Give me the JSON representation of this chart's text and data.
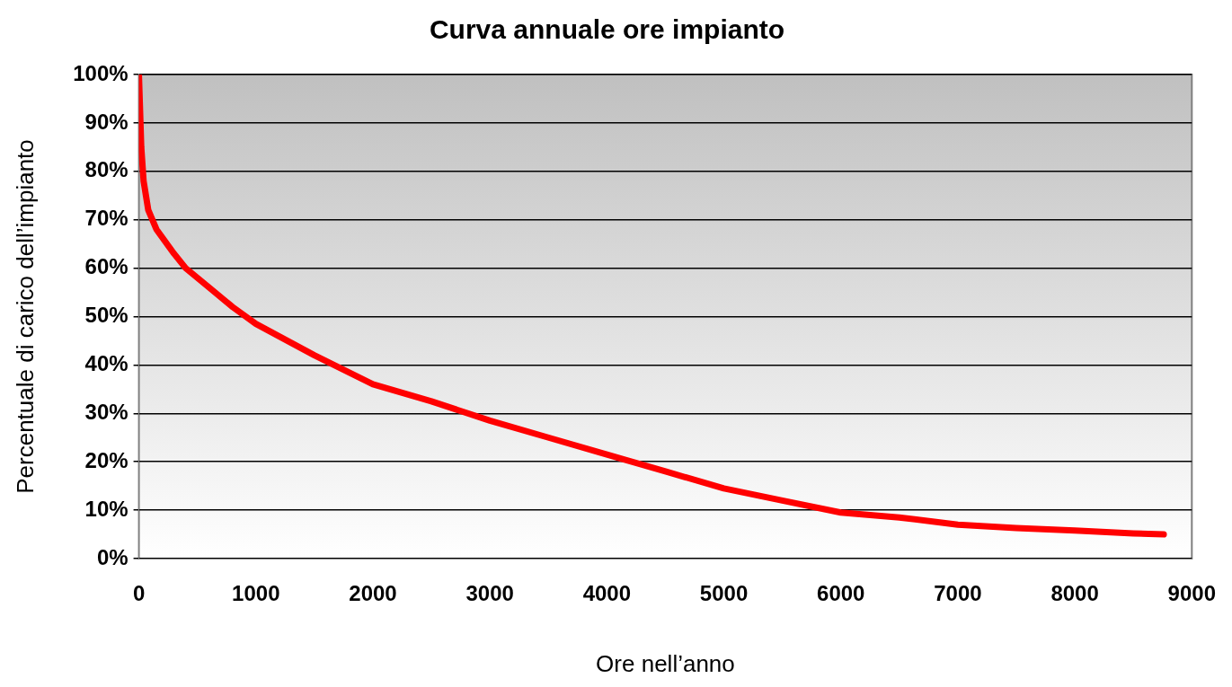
{
  "chart_data": {
    "type": "line",
    "title": "Curva annuale ore impianto",
    "xlabel": "Ore nell’anno",
    "ylabel": "Percentuale di carico dell’impianto",
    "series": [
      {
        "color": "#ff0000",
        "x": [
          0,
          20,
          40,
          80,
          150,
          300,
          400,
          600,
          800,
          1000,
          1500,
          2000,
          2500,
          3000,
          3500,
          4000,
          4500,
          5000,
          5500,
          6000,
          6500,
          7000,
          7500,
          8000,
          8500,
          8760
        ],
        "values": [
          100,
          85,
          78,
          72,
          68,
          63,
          60,
          56,
          52,
          48.5,
          42,
          36,
          32.5,
          28.5,
          25,
          21.5,
          18,
          14.5,
          12,
          9.5,
          8.5,
          7,
          6.3,
          5.8,
          5.2,
          5
        ]
      }
    ],
    "xlim": [
      0,
      9000
    ],
    "xticks": [
      0,
      1000,
      2000,
      3000,
      4000,
      5000,
      6000,
      7000,
      8000,
      9000
    ],
    "ylim": [
      0,
      100
    ],
    "yticks": [
      {
        "value": 0,
        "label": "0%"
      },
      {
        "value": 10,
        "label": "10%"
      },
      {
        "value": 20,
        "label": "20%"
      },
      {
        "value": 30,
        "label": "30%"
      },
      {
        "value": 40,
        "label": "40%"
      },
      {
        "value": 50,
        "label": "50%"
      },
      {
        "value": 60,
        "label": "60%"
      },
      {
        "value": 70,
        "label": "70%"
      },
      {
        "value": 80,
        "label": "80%"
      },
      {
        "value": 90,
        "label": "90%"
      },
      {
        "value": 100,
        "label": "100%"
      }
    ],
    "grid": "y",
    "legend": false,
    "marker": "none",
    "line_style": "solid"
  }
}
